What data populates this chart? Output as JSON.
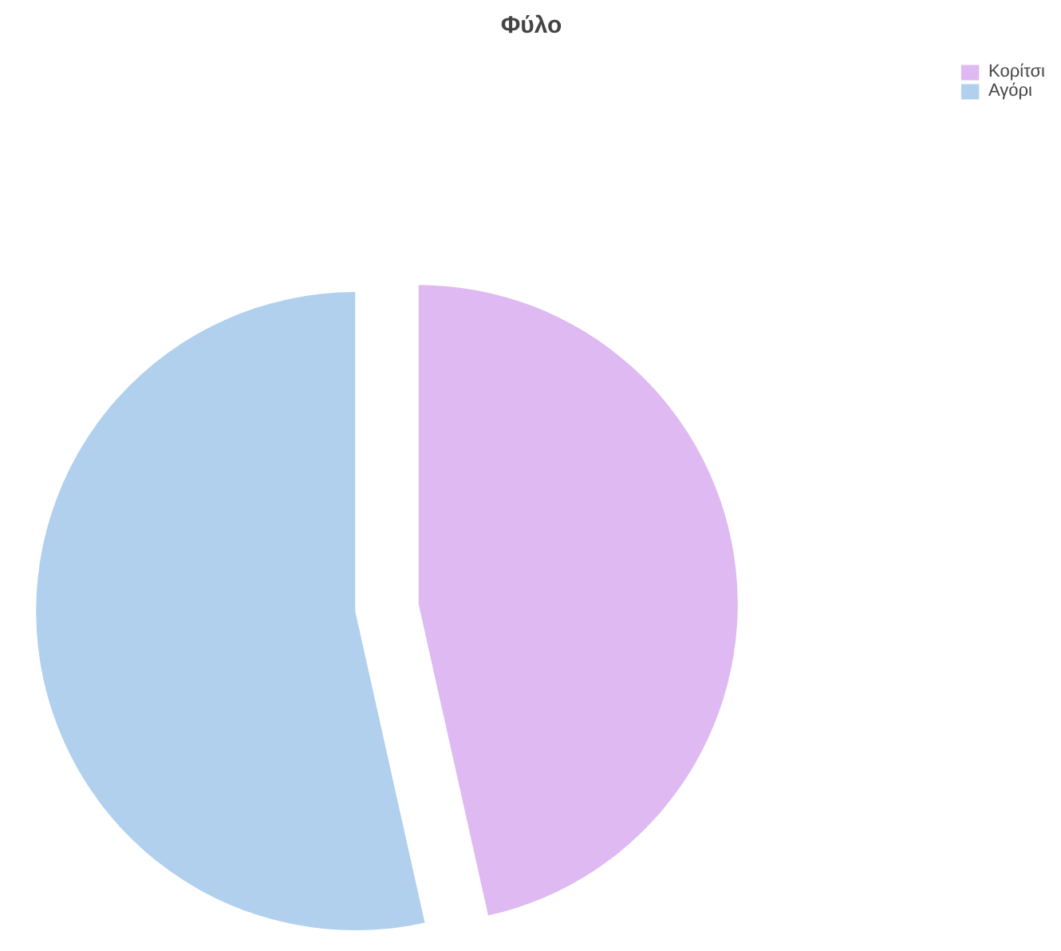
{
  "chart_data": {
    "type": "pie",
    "title": "Φύλο",
    "categories": [
      "Κορίτσι",
      "Αγόρι"
    ],
    "values": [
      46.5,
      53.5
    ],
    "colors": [
      "#dfb9f2",
      "#b0d0ee"
    ],
    "legend": "top right"
  }
}
